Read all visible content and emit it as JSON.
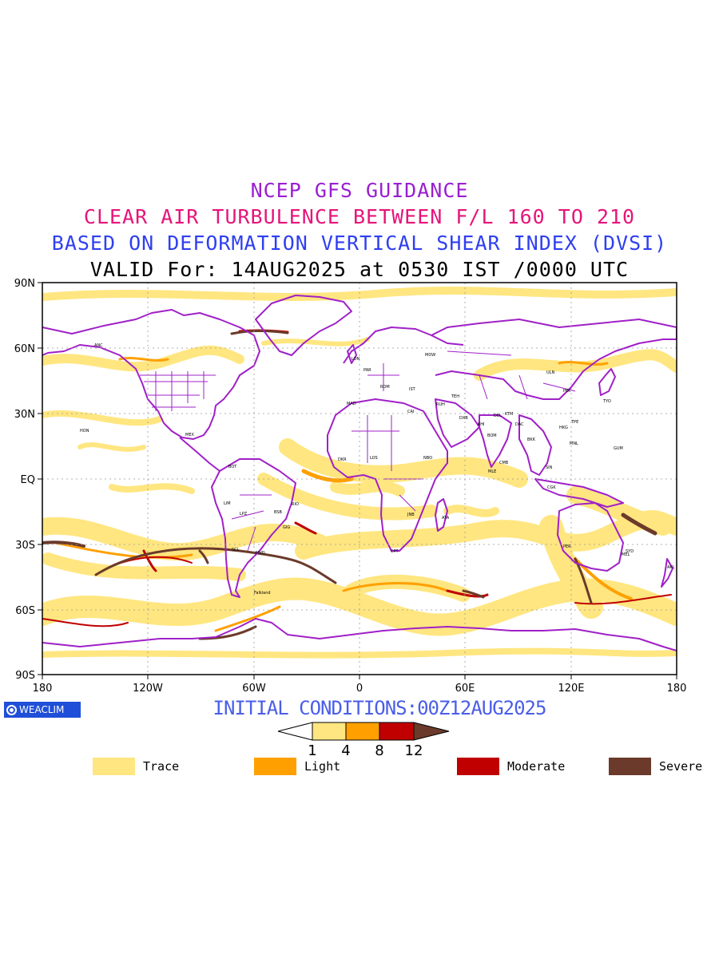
{
  "titles": {
    "line1": "NCEP GFS GUIDANCE",
    "line2": "CLEAR AIR TURBULENCE BETWEEN F/L 160 TO 210",
    "line3": "BASED ON DEFORMATION VERTICAL SHEAR INDEX (DVSI)",
    "line4": "VALID For: 14AUG2025 at 0530 IST /0000 UTC"
  },
  "map": {
    "lat_labels": [
      "90N",
      "60N",
      "30N",
      "EQ",
      "30S",
      "60S",
      "90S"
    ],
    "lon_labels": [
      "180",
      "120W",
      "60W",
      "0",
      "60E",
      "120E",
      "180"
    ],
    "coastline_color": "#a020c8",
    "station_labels": [
      "ANC",
      "HON",
      "MEX",
      "BOT",
      "LIM",
      "SCL",
      "LPZ",
      "BSB",
      "RIO",
      "MVD",
      "GIG",
      "DKR",
      "LOS",
      "NBO",
      "JNB",
      "CPT",
      "ATA",
      "MLE",
      "CMB",
      "DEL",
      "BOM",
      "KTM",
      "DAC",
      "BKK",
      "SIN",
      "CGK",
      "HKG",
      "TPE",
      "MNL",
      "GUM",
      "TYO",
      "PEK",
      "ULN",
      "MOW",
      "LON",
      "PAR",
      "MAD",
      "ROM",
      "CAI",
      "RUH",
      "DXB",
      "KHI",
      "TEH",
      "IST",
      "PER",
      "SYD",
      "MEL",
      "AKL",
      "Falkland"
    ]
  },
  "initial_conditions": "INITIAL CONDITIONS:00Z12AUG2025",
  "colorbar": {
    "thresholds": [
      "1",
      "4",
      "8",
      "12"
    ],
    "colors": [
      "#ffffff",
      "#ffe680",
      "#ffa000",
      "#c00000",
      "#6b3a2a"
    ]
  },
  "legend": [
    {
      "label": "Trace",
      "color": "#ffe680"
    },
    {
      "label": "Light",
      "color": "#ffa000"
    },
    {
      "label": "Moderate",
      "color": "#c00000"
    },
    {
      "label": "Severe",
      "color": "#6b3a2a"
    }
  ],
  "logo_text": "WEACLIM"
}
